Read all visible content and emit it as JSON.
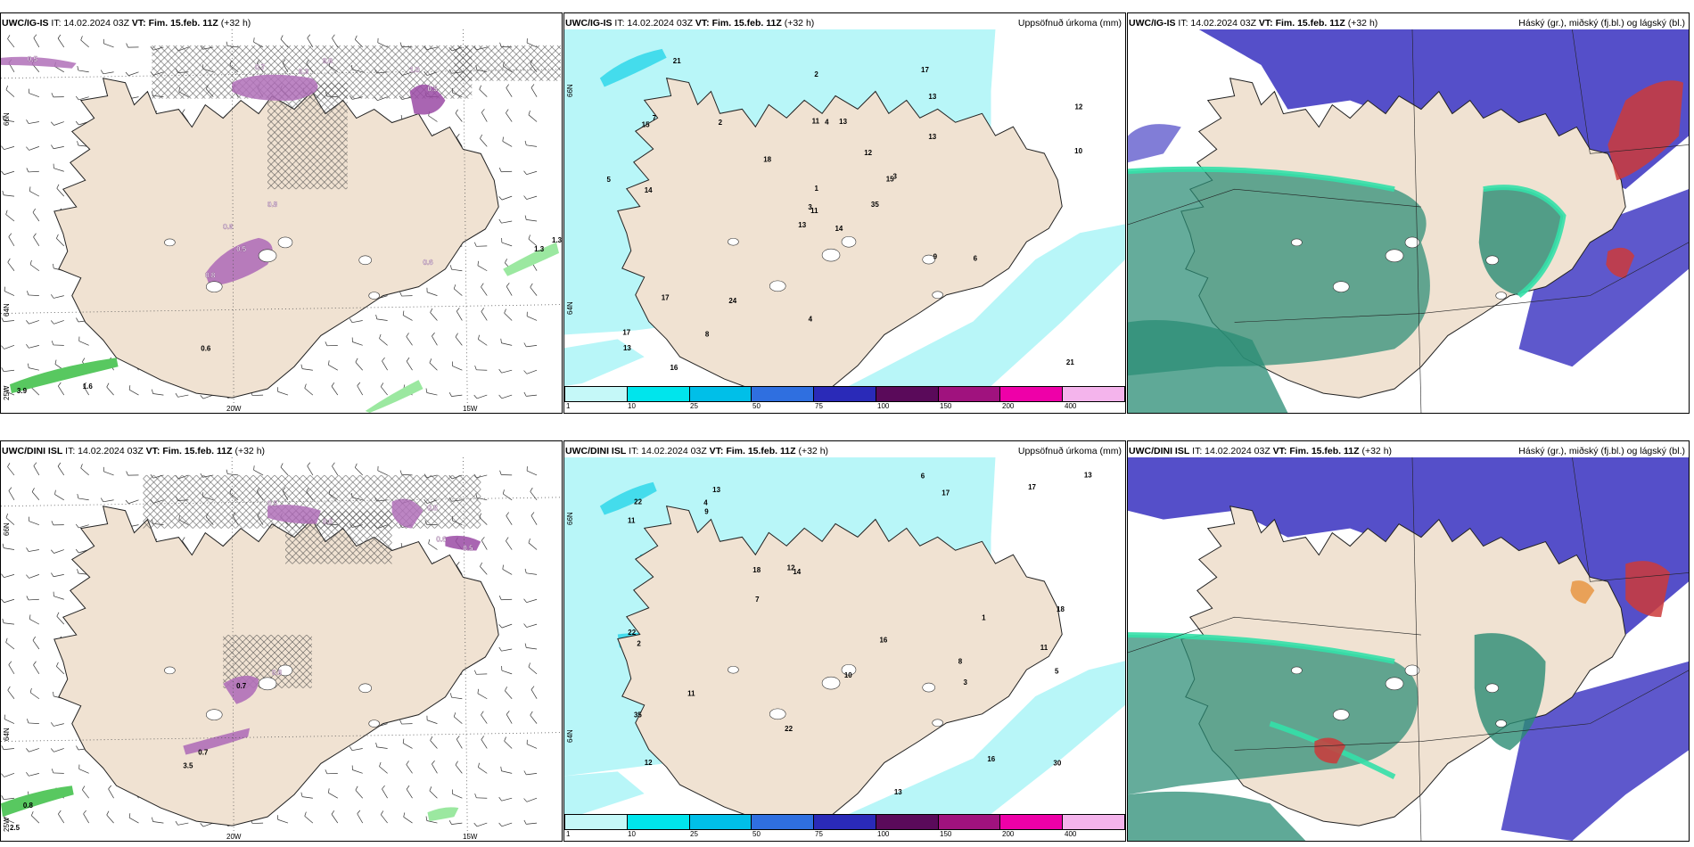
{
  "panels": [
    {
      "id": "top-left",
      "model": "UWC/IG-IS",
      "it": "IT: 14.02.2024 03Z",
      "vt": "VT: Fim. 15.feb. 11Z",
      "lead": "(+32 h)",
      "right_title": "",
      "axis": {
        "lat_a": "66N",
        "lat_b": "64N",
        "lon_a": "20W",
        "lon_b": "15W",
        "corner": "25W"
      },
      "labels": [
        "0.5",
        "0.7",
        "0.3",
        "0.6",
        "1.0",
        "0.5",
        "0.8",
        "0.6",
        "0.5",
        "0.8",
        "0.6",
        "1.3",
        "1.3",
        "0.6",
        "3.9",
        "1.6"
      ]
    },
    {
      "id": "top-middle",
      "model": "UWC/IG-IS",
      "it": "IT: 14.02.2024 03Z",
      "vt": "VT: Fim. 15.feb. 11Z",
      "lead": "(+32 h)",
      "right_title": "Uppsöfnuð úrkoma (mm)",
      "axis": {
        "lat_a": "66N",
        "lat_b": "64N"
      },
      "numbers": [
        "14",
        "15",
        "11",
        "17",
        "15",
        "24",
        "17",
        "13",
        "13",
        "35",
        "21",
        "21",
        "14",
        "12",
        "13",
        "13",
        "16",
        "11",
        "12",
        "17",
        "18",
        "13",
        "8",
        "4",
        "3",
        "6",
        "7",
        "2",
        "5",
        "9",
        "10",
        "3",
        "4",
        "1",
        "2"
      ]
    },
    {
      "id": "top-right",
      "model": "UWC/IG-IS",
      "it": "IT: 14.02.2024 03Z",
      "vt": "VT: Fim. 15.feb. 11Z",
      "lead": "(+32 h)",
      "right_title": "Háský (gr.), miðský (fj.bl.) og lágský (bl.)"
    },
    {
      "id": "bottom-left",
      "model": "UWC/DINI ISL",
      "it": "IT: 14.02.2024 03Z",
      "vt": "VT: Fim. 15.feb. 11Z",
      "lead": "(+32 h)",
      "right_title": "",
      "axis": {
        "lat_a": "66N",
        "lat_b": "64N",
        "lon_a": "20W",
        "lon_b": "15W",
        "corner": "25W"
      },
      "labels": [
        "0.5",
        "0.6",
        "0.8",
        "0.6",
        "0.5",
        "0.6",
        "0.7",
        "0.7",
        "3.5",
        "0.8",
        "2.5"
      ]
    },
    {
      "id": "bottom-middle",
      "model": "UWC/DINI ISL",
      "it": "IT: 14.02.2024 03Z",
      "vt": "VT: Fim. 15.feb. 11Z",
      "lead": "(+32 h)",
      "right_title": "Uppsöfnuð úrkoma (mm)",
      "axis": {
        "lat_a": "66N",
        "lat_b": "64N"
      },
      "numbers": [
        "8",
        "11",
        "12",
        "13",
        "14",
        "16",
        "35",
        "17",
        "18",
        "13",
        "11",
        "22",
        "22",
        "30",
        "22",
        "18",
        "10",
        "16",
        "12",
        "11",
        "13",
        "17",
        "7",
        "5",
        "6",
        "4",
        "3",
        "2",
        "9",
        "1"
      ]
    },
    {
      "id": "bottom-right",
      "model": "UWC/DINI ISL",
      "it": "IT: 14.02.2024 03Z",
      "vt": "VT: Fim. 15.feb. 11Z",
      "lead": "(+32 h)",
      "right_title": "Háský (gr.), miðský (fj.bl.) og lágský (bl.)"
    }
  ],
  "precip_scale": {
    "labels": [
      "1",
      "10",
      "25",
      "50",
      "75",
      "100",
      "150",
      "200",
      "400"
    ],
    "colors": [
      "#c5f8f8",
      "#00e5ec",
      "#00bfe8",
      "#2f6fe0",
      "#2a2ab8",
      "#5a0a5a",
      "#a0127e",
      "#ee00a8",
      "#f4b4ec"
    ]
  },
  "colors": {
    "land": "#f0e2d2",
    "water": "#ffffff",
    "precip_light": "#b8f6f8",
    "precip_mid": "#44dcec",
    "snow_purple": "#8e3a92",
    "green_rain": "#58e080",
    "high_cloud": "#2a8c74",
    "mid_cloud": "#4c46c6",
    "low_cloud": "#cc3a3a"
  }
}
